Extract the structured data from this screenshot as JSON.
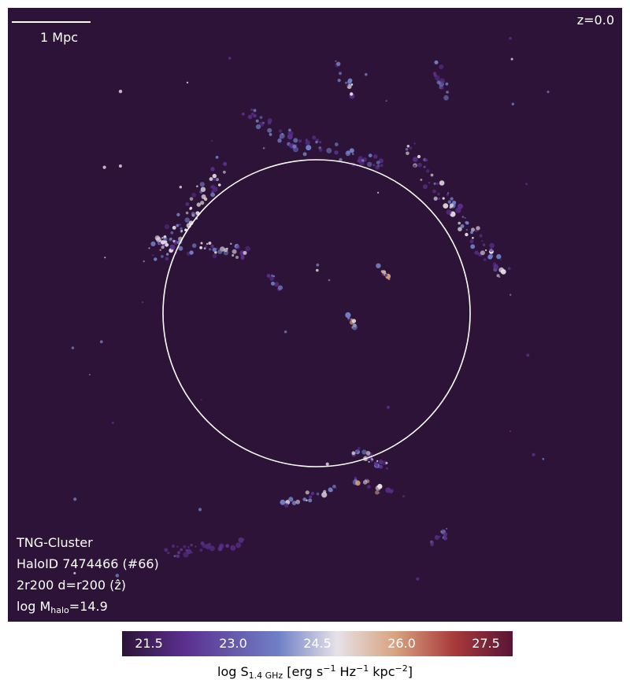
{
  "figure": {
    "scalebar_label": "1 Mpc",
    "redshift_label": "z=0.0",
    "info_lines": [
      "TNG-Cluster",
      "HaloID 7474466 (#66)",
      "2r200 d=r200 (ẑ)"
    ],
    "mass_prefix": "log M",
    "mass_sub": "halo",
    "mass_suffix": "=14.9",
    "colormap_colors": [
      "#2d1337",
      "#5b2f8f",
      "#6f80c6",
      "#e7e2e8",
      "#d8a27f",
      "#a83a3a",
      "#5a1436"
    ],
    "colorbar_ticks": [
      "21.5",
      "23.0",
      "24.5",
      "26.0",
      "27.5"
    ],
    "colorbar_label": {
      "pre": "log S",
      "sub": "1.4 GHz",
      "mid1": " [erg s",
      "sup1": "−1",
      "mid2": " Hz",
      "sup2": "−1",
      "mid3": " kpc",
      "sup3": "−2",
      "post": "]"
    }
  }
}
